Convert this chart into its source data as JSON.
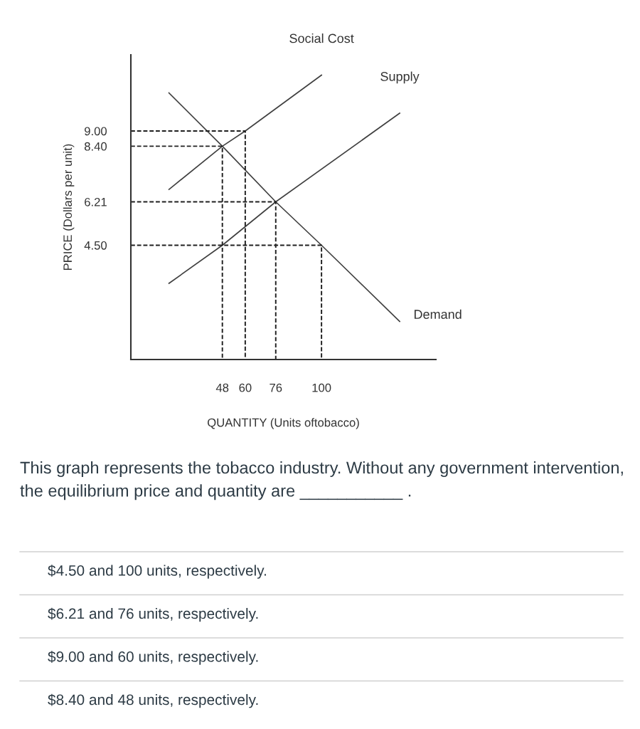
{
  "chart_data": {
    "type": "line",
    "xlabel": "QUANTITY (Units oftobacco)",
    "ylabel": "PRICE (Dollars per unit)",
    "xlim": [
      0,
      160
    ],
    "ylim": [
      0,
      12
    ],
    "xticks": [
      48,
      60,
      76,
      100
    ],
    "yticks": [
      {
        "value": 4.5,
        "label": "4.50"
      },
      6.21,
      {
        "value": 8.4,
        "label": "8.40"
      },
      {
        "value": 9,
        "label": "9.00"
      }
    ],
    "grid": false,
    "legend": false,
    "marker": "none",
    "series": [
      {
        "name": "Social Cost",
        "color": "#404040",
        "x": [
          20,
          48,
          60,
          100
        ],
        "values": [
          6.7,
          8.4,
          9.0,
          11.2
        ]
      },
      {
        "name": "Supply",
        "color": "#404040",
        "x": [
          20,
          48,
          76,
          141
        ],
        "values": [
          3.0,
          4.5,
          6.21,
          9.7
        ]
      },
      {
        "name": "Demand",
        "color": "#404040",
        "x": [
          20,
          48,
          76,
          100,
          141
        ],
        "values": [
          10.5,
          8.4,
          6.21,
          4.5,
          1.5
        ]
      },
      {
        "color": "#202020",
        "line_style": "dashed",
        "x": [
          0,
          60,
          60
        ],
        "values": [
          9.0,
          9.0,
          0
        ]
      },
      {
        "color": "#202020",
        "line_style": "dashed",
        "x": [
          0,
          48,
          48
        ],
        "values": [
          8.4,
          8.4,
          0
        ]
      },
      {
        "color": "#202020",
        "line_style": "dashed",
        "x": [
          0,
          76,
          76
        ],
        "values": [
          6.21,
          6.21,
          0
        ]
      },
      {
        "color": "#202020",
        "line_style": "dashed",
        "x": [
          0,
          100,
          100
        ],
        "values": [
          4.5,
          4.5,
          0
        ]
      }
    ],
    "annotations": [
      "This graph represents the tobacco industry. Without any government intervention, the equilibrium price and quantity are ___________ .",
      "$4.50 and 100 units, respectively.",
      "$6.21 and 76 units, respectively.",
      "$9.00 and 60 units, respectively.",
      "$8.40 and 48 units, respectively."
    ]
  }
}
